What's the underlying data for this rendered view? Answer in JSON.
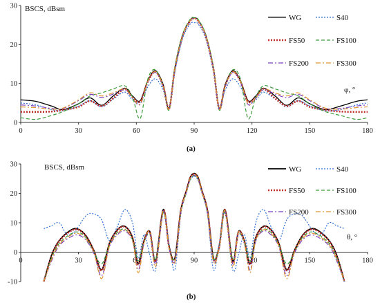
{
  "chart_data": [
    {
      "type": "line",
      "caption": "(a)",
      "ylabel": "BSCS, dBsm",
      "xlabel": "φ, °",
      "xlim": [
        0,
        180
      ],
      "ylim": [
        0,
        30
      ],
      "xticks": [
        0,
        30,
        60,
        90,
        120,
        150,
        180
      ],
      "yticks": [
        0,
        10,
        20,
        30
      ],
      "grid": false,
      "legend_position": "top-right",
      "series": [
        {
          "name": "WG",
          "color": "#000000",
          "dash": "",
          "width": 1.3,
          "x": [
            0,
            8,
            16,
            22,
            30,
            36,
            42,
            48,
            54,
            58,
            62,
            66,
            70,
            74,
            77,
            80,
            84,
            88,
            90,
            92,
            96,
            100,
            103,
            106,
            110,
            114,
            118,
            122,
            126,
            132,
            138,
            144,
            150,
            158,
            166,
            174,
            180
          ],
          "y": [
            5.8,
            5.4,
            4.2,
            3.3,
            4.8,
            6.3,
            4.4,
            6.8,
            8.8,
            6.8,
            5.6,
            10.8,
            13.3,
            9.6,
            3.6,
            14.0,
            22.5,
            26.3,
            26.8,
            26.3,
            22.5,
            14.0,
            3.6,
            9.6,
            13.3,
            10.8,
            5.6,
            6.8,
            8.8,
            6.8,
            4.4,
            6.3,
            4.8,
            3.3,
            4.2,
            5.4,
            5.8
          ]
        },
        {
          "name": "S40",
          "color": "#2f6fd6",
          "dash": "2,2",
          "width": 1.2,
          "x": [
            0,
            8,
            16,
            22,
            30,
            36,
            42,
            48,
            54,
            58,
            62,
            66,
            70,
            74,
            77,
            80,
            84,
            88,
            90,
            92,
            96,
            100,
            103,
            106,
            110,
            114,
            118,
            122,
            126,
            132,
            138,
            144,
            150,
            158,
            166,
            174,
            180
          ],
          "y": [
            5.0,
            4.5,
            3.3,
            3.0,
            4.2,
            5.6,
            4.0,
            6.0,
            7.8,
            5.8,
            5.2,
            9.2,
            11.2,
            8.2,
            3.4,
            13.0,
            21.5,
            25.3,
            25.6,
            25.3,
            21.5,
            13.0,
            3.4,
            8.2,
            11.2,
            9.2,
            5.2,
            5.8,
            7.8,
            6.0,
            4.0,
            5.6,
            4.2,
            3.0,
            3.3,
            4.5,
            5.0
          ]
        },
        {
          "name": "FS50",
          "color": "#c0302b",
          "dash": "2,2",
          "width": 2.6,
          "x": [
            0,
            8,
            16,
            22,
            30,
            36,
            42,
            48,
            54,
            58,
            62,
            66,
            70,
            74,
            77,
            80,
            84,
            88,
            90,
            92,
            96,
            100,
            103,
            106,
            110,
            114,
            118,
            122,
            126,
            132,
            138,
            144,
            150,
            158,
            166,
            174,
            180
          ],
          "y": [
            2.7,
            2.7,
            2.8,
            3.2,
            4.0,
            5.5,
            4.2,
            6.2,
            8.6,
            6.4,
            5.4,
            10.5,
            13.0,
            9.2,
            3.5,
            13.8,
            22.2,
            26.1,
            26.6,
            26.1,
            22.2,
            13.8,
            3.5,
            9.2,
            13.0,
            10.5,
            5.4,
            6.4,
            8.6,
            6.2,
            4.2,
            5.5,
            4.0,
            3.2,
            2.8,
            2.7,
            2.7
          ]
        },
        {
          "name": "FS100",
          "color": "#3a9a3a",
          "dash": "5,3",
          "width": 1.2,
          "x": [
            0,
            8,
            16,
            22,
            30,
            36,
            42,
            48,
            54,
            58,
            62,
            66,
            70,
            74,
            77,
            80,
            84,
            88,
            90,
            92,
            96,
            100,
            103,
            106,
            110,
            114,
            118,
            122,
            126,
            132,
            138,
            144,
            150,
            158,
            166,
            174,
            180
          ],
          "y": [
            1.2,
            0.8,
            1.8,
            2.8,
            4.8,
            6.8,
            7.6,
            8.6,
            9.4,
            6.5,
            1.0,
            11.2,
            13.5,
            9.0,
            3.2,
            14.2,
            22.6,
            26.5,
            26.9,
            26.5,
            22.6,
            14.2,
            3.2,
            9.0,
            13.5,
            11.2,
            1.0,
            6.5,
            9.4,
            8.6,
            7.6,
            6.8,
            4.8,
            2.8,
            1.8,
            0.8,
            1.2
          ]
        },
        {
          "name": "FS200",
          "color": "#7b3fbf",
          "dash": "7,3,2,3",
          "width": 1.2,
          "x": [
            0,
            8,
            16,
            22,
            30,
            36,
            42,
            48,
            54,
            58,
            62,
            66,
            70,
            74,
            77,
            80,
            84,
            88,
            90,
            92,
            96,
            100,
            103,
            106,
            110,
            114,
            118,
            122,
            126,
            132,
            138,
            144,
            150,
            158,
            166,
            174,
            180
          ],
          "y": [
            4.5,
            4.2,
            3.6,
            3.6,
            5.6,
            7.2,
            6.4,
            7.3,
            8.4,
            6.2,
            4.6,
            10.4,
            12.8,
            9.0,
            3.4,
            13.6,
            22.2,
            26.1,
            26.6,
            26.1,
            22.2,
            13.6,
            3.4,
            9.0,
            12.8,
            10.4,
            4.6,
            6.2,
            8.4,
            7.3,
            6.4,
            7.2,
            5.6,
            3.6,
            3.6,
            4.2,
            4.5
          ]
        },
        {
          "name": "FS300",
          "color": "#e0942f",
          "dash": "7,3,2,3",
          "width": 1.2,
          "x": [
            0,
            8,
            16,
            22,
            30,
            36,
            42,
            48,
            54,
            58,
            62,
            66,
            70,
            74,
            77,
            80,
            84,
            88,
            90,
            92,
            96,
            100,
            103,
            106,
            110,
            114,
            118,
            122,
            126,
            132,
            138,
            144,
            150,
            158,
            166,
            174,
            180
          ],
          "y": [
            4.0,
            3.8,
            3.4,
            3.7,
            5.8,
            7.6,
            6.8,
            7.6,
            8.6,
            6.3,
            4.8,
            10.6,
            13.0,
            9.2,
            3.4,
            13.8,
            22.3,
            26.2,
            26.7,
            26.2,
            22.3,
            13.8,
            3.4,
            9.2,
            13.0,
            10.6,
            4.8,
            6.3,
            8.6,
            7.6,
            6.8,
            7.6,
            5.8,
            3.7,
            3.4,
            3.8,
            4.0
          ]
        }
      ]
    },
    {
      "type": "line",
      "caption": "(b)",
      "ylabel": "BSCS, dBsm",
      "xlabel": "θ, °",
      "xlim": [
        0,
        180
      ],
      "ylim": [
        -10,
        30
      ],
      "xticks": [
        0,
        30,
        60,
        90,
        120,
        150,
        180
      ],
      "yticks": [
        -10,
        0,
        10,
        20,
        30
      ],
      "grid": false,
      "legend_position": "top-right",
      "series": [
        {
          "name": "WG",
          "color": "#000000",
          "dash": "",
          "width": 1.8,
          "x": [
            12,
            16,
            20,
            26,
            30,
            34,
            38,
            42,
            46,
            50,
            54,
            58,
            61,
            64,
            67,
            70,
            74,
            77,
            80,
            83,
            86,
            88,
            90,
            92,
            94,
            97,
            100,
            103,
            106,
            110,
            113,
            116,
            119,
            122,
            126,
            130,
            134,
            138,
            142,
            146,
            150,
            154,
            160,
            164,
            168
          ],
          "y": [
            -10,
            -1,
            4,
            7.5,
            7.8,
            5.5,
            0.5,
            -6,
            3,
            7.5,
            8.8,
            5,
            -4,
            4,
            7.0,
            -3,
            14.5,
            2,
            -2,
            14,
            21,
            25.5,
            26.8,
            25.5,
            21,
            14,
            -2,
            2,
            14.5,
            -3,
            7.0,
            4,
            -4,
            5,
            8.8,
            7.5,
            3,
            -6,
            0.5,
            5.5,
            7.8,
            7.5,
            4,
            -1,
            -10
          ]
        },
        {
          "name": "S40",
          "color": "#2f6fd6",
          "dash": "2,2",
          "width": 1.2,
          "x": [
            12,
            16,
            20,
            24,
            28,
            34,
            38,
            42,
            46,
            50,
            54,
            58,
            61,
            64,
            67,
            70,
            74,
            77,
            80,
            83,
            86,
            88,
            90,
            92,
            94,
            97,
            100,
            103,
            106,
            110,
            113,
            116,
            119,
            122,
            126,
            130,
            134,
            138,
            142,
            146,
            152,
            156,
            160,
            164,
            168
          ],
          "y": [
            8,
            9,
            10,
            6,
            7,
            12.5,
            13,
            11,
            4,
            8.5,
            14.5,
            10,
            -2,
            6,
            -1,
            -6,
            13.5,
            3,
            -6,
            12.5,
            20.5,
            24.5,
            25.8,
            24.5,
            20.5,
            12.5,
            -6,
            3,
            13.5,
            -6,
            -1,
            6,
            -2,
            10,
            14.5,
            8.5,
            4,
            11,
            13,
            12.5,
            7,
            6,
            10,
            9,
            8
          ]
        },
        {
          "name": "FS50",
          "color": "#c0302b",
          "dash": "2,2",
          "width": 2.6,
          "x": [
            12,
            16,
            20,
            26,
            30,
            34,
            38,
            42,
            46,
            50,
            54,
            58,
            61,
            64,
            67,
            70,
            74,
            77,
            80,
            83,
            86,
            88,
            90,
            92,
            94,
            97,
            100,
            103,
            106,
            110,
            113,
            116,
            119,
            122,
            126,
            130,
            134,
            138,
            142,
            146,
            150,
            154,
            160,
            164,
            168
          ],
          "y": [
            -10,
            -1.5,
            3.8,
            7.2,
            7.6,
            5.3,
            0.3,
            -6.2,
            2.8,
            7.3,
            8.6,
            4.8,
            -4.2,
            3.8,
            6.8,
            -3.2,
            14.3,
            1.8,
            -2.2,
            13.8,
            20.8,
            25.3,
            26.6,
            25.3,
            20.8,
            13.8,
            -2.2,
            1.8,
            14.3,
            -3.2,
            6.8,
            3.8,
            -4.2,
            4.8,
            8.6,
            7.3,
            2.8,
            -6.2,
            0.3,
            5.3,
            7.6,
            7.2,
            3.8,
            -1.5,
            -10
          ]
        },
        {
          "name": "FS100",
          "color": "#3a9a3a",
          "dash": "5,3",
          "width": 1.2,
          "x": [
            12,
            16,
            20,
            26,
            30,
            34,
            38,
            42,
            46,
            50,
            54,
            58,
            61,
            64,
            67,
            70,
            74,
            77,
            80,
            83,
            86,
            88,
            90,
            92,
            94,
            97,
            100,
            103,
            106,
            110,
            113,
            116,
            119,
            122,
            126,
            130,
            134,
            138,
            142,
            146,
            150,
            154,
            160,
            164,
            168
          ],
          "y": [
            -10,
            -2,
            3,
            6.2,
            6.8,
            4.8,
            0,
            -4,
            2.5,
            6.6,
            7.8,
            4.2,
            -3,
            3.5,
            6.0,
            -2.5,
            13.5,
            1.5,
            -2,
            13.2,
            20.2,
            24.8,
            26.0,
            24.8,
            20.2,
            13.2,
            -2,
            1.5,
            13.5,
            -2.5,
            6.0,
            3.5,
            -3,
            4.2,
            7.8,
            6.6,
            2.5,
            -4,
            0,
            4.8,
            6.8,
            6.2,
            3,
            -2,
            -10
          ]
        },
        {
          "name": "FS200",
          "color": "#7b3fbf",
          "dash": "7,3,2,3",
          "width": 1.2,
          "x": [
            12,
            16,
            20,
            26,
            30,
            34,
            38,
            42,
            46,
            50,
            54,
            58,
            61,
            64,
            67,
            70,
            74,
            77,
            80,
            83,
            86,
            88,
            90,
            92,
            94,
            97,
            100,
            103,
            106,
            110,
            113,
            116,
            119,
            122,
            126,
            130,
            134,
            138,
            142,
            146,
            150,
            154,
            160,
            164,
            168
          ],
          "y": [
            -10,
            -3,
            2.2,
            5.2,
            5.8,
            4.0,
            -0.5,
            -8,
            1.8,
            5.8,
            7.2,
            3.8,
            -6,
            3.0,
            6.5,
            -4,
            14,
            1.2,
            -3,
            13.2,
            20.4,
            25.0,
            26.2,
            25.0,
            20.4,
            13.2,
            -3,
            1.2,
            14,
            -4,
            6.5,
            3.0,
            -6,
            3.8,
            7.2,
            5.8,
            1.8,
            -8,
            -0.5,
            4.0,
            5.8,
            5.2,
            2.2,
            -3,
            -10
          ]
        },
        {
          "name": "FS300",
          "color": "#e0942f",
          "dash": "7,3,2,3",
          "width": 1.2,
          "x": [
            12,
            16,
            20,
            26,
            30,
            34,
            38,
            42,
            46,
            50,
            54,
            58,
            61,
            64,
            67,
            70,
            74,
            77,
            80,
            83,
            86,
            88,
            90,
            92,
            94,
            97,
            100,
            103,
            106,
            110,
            113,
            116,
            119,
            122,
            126,
            130,
            134,
            138,
            142,
            146,
            150,
            154,
            160,
            164,
            168
          ],
          "y": [
            -10,
            -2.5,
            2.6,
            5.8,
            6.3,
            4.4,
            -0.2,
            -9,
            2.0,
            6.2,
            7.6,
            4.0,
            -7,
            3.2,
            6.8,
            -5,
            14.2,
            1.4,
            -3.5,
            13.5,
            20.6,
            25.1,
            26.4,
            25.1,
            20.6,
            13.5,
            -3.5,
            1.4,
            14.2,
            -5,
            6.8,
            3.2,
            -7,
            4.0,
            7.6,
            6.2,
            2.0,
            -9,
            -0.2,
            4.4,
            6.3,
            5.8,
            2.6,
            -2.5,
            -10
          ]
        }
      ]
    }
  ]
}
